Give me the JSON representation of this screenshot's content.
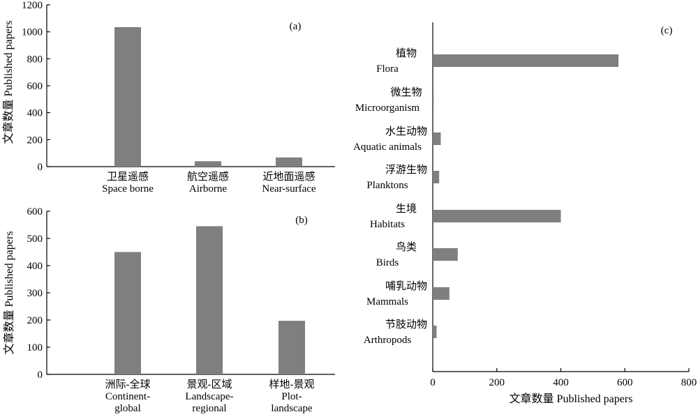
{
  "chart_data": [
    {
      "type": "bar",
      "panel_label": "(a)",
      "ylabel": "文章数量  Published papers",
      "ylim": [
        0,
        1200
      ],
      "yticks": [
        0,
        200,
        400,
        600,
        800,
        1000,
        1200
      ],
      "categories": [
        {
          "zh": "卫星遥感",
          "en": [
            "Space borne"
          ]
        },
        {
          "zh": "航空遥感",
          "en": [
            "Airborne"
          ]
        },
        {
          "zh": "近地面遥感",
          "en": [
            "Near-surface"
          ]
        }
      ],
      "values": [
        1035,
        40,
        68
      ]
    },
    {
      "type": "bar",
      "panel_label": "(b)",
      "ylabel": "文章数量  Published papers",
      "ylim": [
        0,
        600
      ],
      "yticks": [
        0,
        100,
        200,
        300,
        400,
        500,
        600
      ],
      "categories": [
        {
          "zh": "洲际-全球",
          "en": [
            "Continent-",
            "global"
          ]
        },
        {
          "zh": "景观-区域",
          "en": [
            "Landscape-",
            "regional"
          ]
        },
        {
          "zh": "样地-景观",
          "en": [
            "Plot-",
            "landscape"
          ]
        }
      ],
      "values": [
        450,
        545,
        197
      ]
    },
    {
      "type": "bar",
      "orientation": "horizontal",
      "panel_label": "(c)",
      "xlabel": "文章数量 Published papers",
      "xlim": [
        0,
        800
      ],
      "xticks": [
        0,
        200,
        400,
        600,
        800
      ],
      "categories": [
        {
          "zh": "植物",
          "en": "Flora"
        },
        {
          "zh": "微生物",
          "en": "Microorganism"
        },
        {
          "zh": "水生动物",
          "en": "Aquatic animals"
        },
        {
          "zh": "浮游生物",
          "en": "Planktons"
        },
        {
          "zh": "生境",
          "en": "Habitats"
        },
        {
          "zh": "鸟类",
          "en": "Birds"
        },
        {
          "zh": "哺乳动物",
          "en": "Mammals"
        },
        {
          "zh": "节肢动物",
          "en": "Arthropods"
        }
      ],
      "values": [
        580,
        3,
        25,
        20,
        400,
        78,
        52,
        12
      ]
    }
  ]
}
